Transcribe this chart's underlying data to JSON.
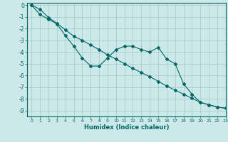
{
  "xlabel": "Humidex (Indice chaleur)",
  "bg_color": "#cce8e8",
  "grid_color": "#aacccc",
  "line_color": "#006666",
  "xlim": [
    -0.5,
    23
  ],
  "ylim": [
    -9.5,
    0.2
  ],
  "xticks": [
    0,
    1,
    2,
    3,
    4,
    5,
    6,
    7,
    8,
    9,
    10,
    11,
    12,
    13,
    14,
    15,
    16,
    17,
    18,
    19,
    20,
    21,
    22,
    23
  ],
  "yticks": [
    0,
    -1,
    -2,
    -3,
    -4,
    -5,
    -6,
    -7,
    -8,
    -9
  ],
  "line1_x": [
    0,
    1,
    2,
    3,
    4,
    5,
    6,
    7,
    8,
    9,
    10,
    11,
    12,
    13,
    14,
    15,
    16,
    17,
    18,
    19,
    20,
    21,
    22,
    23
  ],
  "line1_y": [
    0,
    -0.8,
    -1.2,
    -1.6,
    -2.6,
    -3.5,
    -4.5,
    -5.2,
    -5.2,
    -4.5,
    -3.8,
    -3.5,
    -3.5,
    -3.8,
    -4.0,
    -3.6,
    -4.6,
    -5.0,
    -6.7,
    -7.6,
    -8.3,
    -8.5,
    -8.7,
    -8.8
  ],
  "line2_x": [
    0,
    1,
    2,
    3,
    4,
    5,
    6,
    7,
    8,
    9,
    10,
    11,
    12,
    13,
    14,
    15,
    16,
    17,
    18,
    19,
    20,
    21,
    22,
    23
  ],
  "line2_y": [
    0,
    -0.35,
    -1.05,
    -1.55,
    -2.1,
    -2.65,
    -3.0,
    -3.4,
    -3.8,
    -4.25,
    -4.6,
    -5.0,
    -5.4,
    -5.75,
    -6.1,
    -6.5,
    -6.9,
    -7.25,
    -7.6,
    -7.95,
    -8.3,
    -8.5,
    -8.7,
    -8.8
  ]
}
